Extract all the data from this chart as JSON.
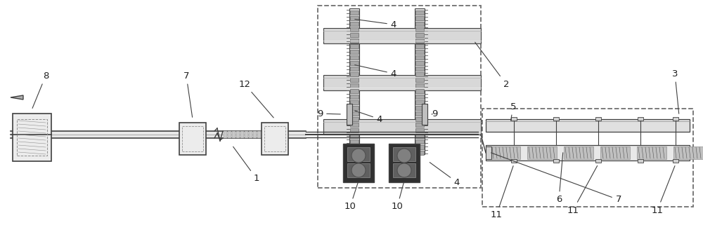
{
  "bg_color": "#ffffff",
  "line_color": "#404040",
  "light_gray": "#d0d0d0",
  "medium_gray": "#909090",
  "dark_gray": "#505050",
  "dashed_color": "#707070",
  "label_color": "#202020",
  "figsize": [
    10.0,
    3.31
  ],
  "dpi": 100
}
